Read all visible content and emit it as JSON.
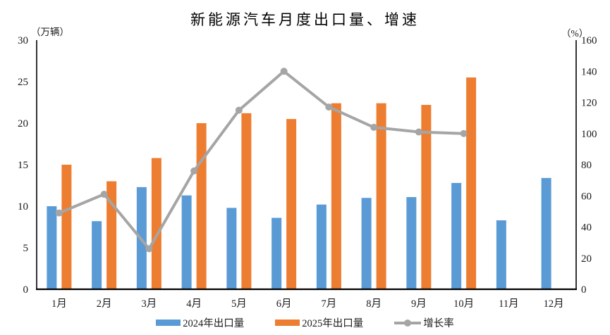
{
  "title": "新能源汽车月度出口量、增速",
  "legend": {
    "series1": "2024年出口量",
    "series2": "2025年出口量",
    "series3": "增长率"
  },
  "colors": {
    "bar_2024": "#5B9BD5",
    "bar_2025": "#ED7D31",
    "growth_line": "#A5A5A5",
    "axis": "#000000",
    "text": "#1A1A1A"
  },
  "chart_data": {
    "type": "bar",
    "subtype": "grouped-bar with overlay line, dual y-axes",
    "title": "新能源汽车月度出口量、增速",
    "categories": [
      "1月",
      "2月",
      "3月",
      "4月",
      "5月",
      "6月",
      "7月",
      "8月",
      "9月",
      "10月",
      "11月",
      "12月"
    ],
    "series": [
      {
        "name": "2024年出口量",
        "type": "bar",
        "axis": "left",
        "color": "#5B9BD5",
        "values": [
          10.0,
          8.2,
          12.3,
          11.3,
          9.8,
          8.6,
          10.2,
          11.0,
          11.1,
          12.8,
          8.3,
          13.4
        ]
      },
      {
        "name": "2025年出口量",
        "type": "bar",
        "axis": "left",
        "color": "#ED7D31",
        "values": [
          15.0,
          13.0,
          15.8,
          20.0,
          21.2,
          20.5,
          22.4,
          22.4,
          22.2,
          25.5,
          null,
          null
        ]
      },
      {
        "name": "增长率",
        "type": "line",
        "axis": "right",
        "color": "#A5A5A5",
        "values": [
          49,
          61,
          26,
          76,
          115,
          140,
          117,
          104,
          101,
          100,
          null,
          null
        ]
      }
    ],
    "left_axis": {
      "label": "（万辆）",
      "min": 0,
      "max": 30,
      "step": 5,
      "ticks": [
        0,
        5,
        10,
        15,
        20,
        25,
        30
      ]
    },
    "right_axis": {
      "label": "（%）",
      "min": 0,
      "max": 160,
      "step": 20,
      "ticks": [
        0,
        20,
        40,
        60,
        80,
        100,
        120,
        140,
        160
      ]
    },
    "grid": false,
    "legend_position": "bottom"
  }
}
